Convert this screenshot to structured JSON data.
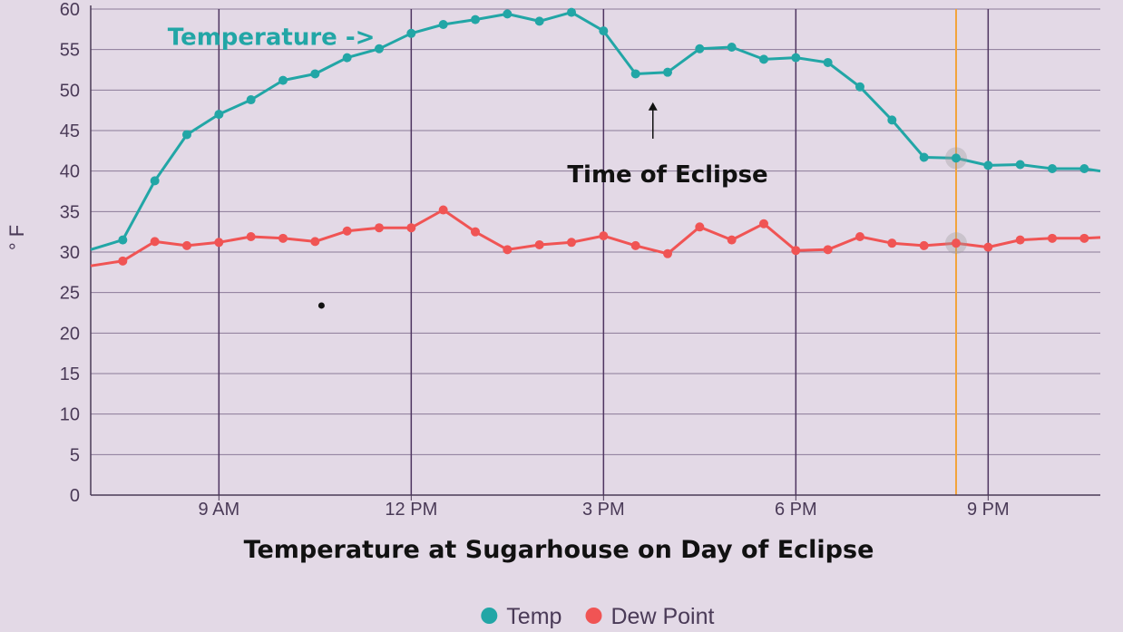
{
  "chart_data": {
    "type": "line",
    "title": "Temperature at Sugarhouse on Day of Eclipse",
    "ylabel": "° F",
    "xlabel": "",
    "x_ticks": [
      {
        "x": 9,
        "label": "9 AM"
      },
      {
        "x": 12,
        "label": "12 PM"
      },
      {
        "x": 15,
        "label": "3 PM"
      },
      {
        "x": 18,
        "label": "6 PM"
      },
      {
        "x": 21,
        "label": "9 PM"
      }
    ],
    "xlim": [
      7,
      22.75
    ],
    "ylim": [
      0,
      60
    ],
    "y_ticks": [
      0,
      5,
      10,
      15,
      20,
      25,
      30,
      35,
      40,
      45,
      50,
      55,
      60
    ],
    "grid": true,
    "legend_position": "bottom",
    "x": [
      7.5,
      8,
      8.5,
      9,
      9.5,
      10,
      10.5,
      11,
      11.5,
      12,
      12.5,
      13,
      13.5,
      14,
      14.5,
      15,
      15.5,
      16,
      16.5,
      17,
      17.5,
      18,
      18.5,
      19,
      19.5,
      20,
      20.5,
      21,
      21.5,
      22,
      22.5
    ],
    "series": [
      {
        "name": "Temp",
        "color": "#22a6a6",
        "values": [
          31.5,
          38.8,
          44.5,
          47.0,
          48.8,
          51.2,
          52.0,
          54.0,
          55.1,
          57.0,
          58.1,
          58.7,
          59.4,
          58.5,
          59.6,
          57.3,
          52.0,
          52.2,
          55.1,
          55.3,
          53.8,
          54.0,
          53.4,
          50.4,
          46.3,
          41.7,
          41.6,
          40.7,
          40.8,
          40.3,
          40.3
        ],
        "start_value": 30.3,
        "end_value": 40.0
      },
      {
        "name": "Dew Point",
        "color": "#f05454",
        "values": [
          28.9,
          31.3,
          30.8,
          31.2,
          31.9,
          31.7,
          31.3,
          32.6,
          33.0,
          33.0,
          35.2,
          32.5,
          30.3,
          30.9,
          31.2,
          32.0,
          30.8,
          29.8,
          33.1,
          31.5,
          33.5,
          30.2,
          30.3,
          31.9,
          31.1,
          30.8,
          31.1,
          30.6,
          31.5,
          31.7,
          31.7
        ],
        "start_value": 28.3,
        "end_value": 31.8
      }
    ],
    "highlight": {
      "x": 20.5,
      "color": "#f2a43c"
    },
    "annotations": [
      {
        "text": "Temperature ->",
        "color": "#22a6a6",
        "x": 8.2,
        "y": 55.6
      },
      {
        "text": "Time of Eclipse",
        "color": "#111111",
        "x": 16.0,
        "y": 38.6,
        "arrow_from_y": 44.0,
        "arrow_to_y": 48.5,
        "arrow_x": 15.77
      },
      {
        "text": "",
        "x": 10.6,
        "y": 23.4,
        "marker": "dot"
      }
    ],
    "colors": {
      "background": "#e3d9e6",
      "grid": "#6e5a7d",
      "axis": "#4a3a57"
    }
  }
}
